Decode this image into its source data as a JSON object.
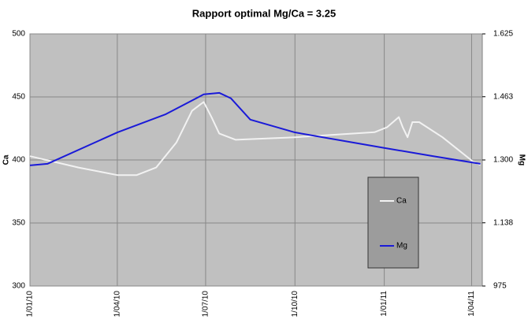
{
  "chart_data": {
    "type": "line",
    "title": "Rapport optimal Mg/Ca = 3.25",
    "y_label": "Ca",
    "y2_label": "Mg",
    "grid": true,
    "legend": "inside-right",
    "xlim": [
      "1/01/10",
      "12/04/11"
    ],
    "xticks": [
      "1/01/10",
      "1/04/10",
      "1/07/10",
      "1/10/10",
      "1/01/11",
      "1/04/11"
    ],
    "ylim": [
      300,
      500
    ],
    "yticks": [
      300,
      350,
      400,
      450,
      500
    ],
    "y2lim": [
      975,
      1625
    ],
    "y2ticks": [
      975,
      {
        "value": 1138,
        "label": "1.138"
      },
      {
        "value": 1300,
        "label": "1.300"
      },
      {
        "value": 1463,
        "label": "1.463"
      },
      {
        "value": 1625,
        "label": "1.625"
      }
    ],
    "series": [
      {
        "name": "Ca",
        "color": "#f2f2f2",
        "x": [
          "1/01/10",
          "20/02/10",
          "1/04/10",
          "21/04/10",
          "11/05/10",
          "1/06/10",
          "17/06/10",
          "29/06/10",
          "7/07/10",
          "15/07/10",
          "1/08/10",
          "1/10/10",
          "22/12/10",
          "4/01/11",
          "16/01/11",
          "20/01/11",
          "25/01/11",
          "30/01/11",
          "6/02/11",
          "2/03/11",
          "2/04/11",
          "10/04/11"
        ],
        "values": [
          403,
          394,
          388,
          388,
          394,
          414,
          439,
          446,
          434,
          421,
          416,
          418,
          422,
          426,
          434,
          426,
          418,
          430,
          430,
          418,
          399,
          396
        ]
      },
      {
        "name": "Mg",
        "color": "#1a1ad8",
        "axis": "y2",
        "x": [
          "1/01/10",
          "19/01/10",
          "1/04/10",
          "21/05/10",
          "29/06/10",
          "15/07/10",
          "27/07/10",
          "16/08/10",
          "1/10/10",
          "1/01/11",
          "20/02/11",
          "10/04/11"
        ],
        "values": [
          1286,
          1290,
          1371,
          1418,
          1469,
          1473,
          1459,
          1404,
          1371,
          1331,
          1310,
          1290
        ]
      }
    ]
  }
}
